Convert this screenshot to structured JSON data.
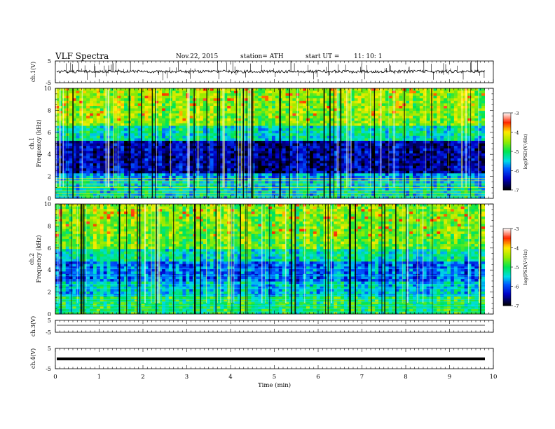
{
  "header": {
    "title": "VLF  Spectra",
    "date": "Nov.22, 2015",
    "station": "station= ATH",
    "start_label": "start  UT  =",
    "start_time": "11: 10: 1"
  },
  "chart_data": [
    {
      "type": "line",
      "panel": "ch1-waveform",
      "ylabel": "ch.1(V)",
      "ylim": [
        -5,
        5
      ],
      "ytick_labels": [
        "5",
        "-5"
      ],
      "x_range_min": [
        0,
        9.8
      ],
      "baseline_v": -0.3,
      "description": "noisy waveform with spikes"
    },
    {
      "type": "heatmap",
      "panel": "ch1-spectrogram",
      "ylabel": "ch.1\nFrequency (kHz)",
      "ylabel_lines": [
        "ch.1",
        "Frequency (kHz)"
      ],
      "ylim": [
        0,
        10
      ],
      "ytick_labels": [
        "0",
        "2",
        "4",
        "6",
        "8",
        "10"
      ],
      "colorbar": {
        "label": "log(PSD(V²/Hz)",
        "range": [
          -7,
          -3
        ],
        "tick_labels": [
          "-3",
          "-4",
          "-5",
          "-6",
          "-7"
        ]
      }
    },
    {
      "type": "heatmap",
      "panel": "ch2-spectrogram",
      "ylabel": "ch.2\nFrequency (kHz)",
      "ylabel_lines": [
        "ch.2",
        "Frequency (kHz)"
      ],
      "ylim": [
        0,
        10
      ],
      "ytick_labels": [
        "0",
        "2",
        "4",
        "6",
        "8",
        "10"
      ],
      "colorbar": {
        "label": "log(PSD(V²/Hz)",
        "range": [
          -7,
          -3
        ],
        "tick_labels": [
          "-3",
          "-4",
          "-5",
          "-6",
          "-7"
        ]
      }
    },
    {
      "type": "line",
      "panel": "ch3-waveform",
      "ylabel": "ch.3(V)",
      "ylim": [
        -5,
        5
      ],
      "ytick_labels": [
        "5",
        "-5"
      ],
      "baseline_v": 0
    },
    {
      "type": "line",
      "panel": "ch4-waveform",
      "ylabel": "ch.4(V)",
      "ylim": [
        -5,
        5
      ],
      "ytick_labels": [
        "5",
        "-5"
      ],
      "baseline_v": 0
    }
  ],
  "xaxis": {
    "label": "Time  (min)",
    "range": [
      0,
      10
    ],
    "tick_labels": [
      "0",
      "1",
      "2",
      "3",
      "4",
      "5",
      "6",
      "7",
      "8",
      "9",
      "10"
    ]
  },
  "colors": {
    "colormap": [
      "#000000",
      "#0000ff",
      "#00ffff",
      "#00ff00",
      "#ffff00",
      "#ff0000",
      "#ffffff"
    ]
  }
}
